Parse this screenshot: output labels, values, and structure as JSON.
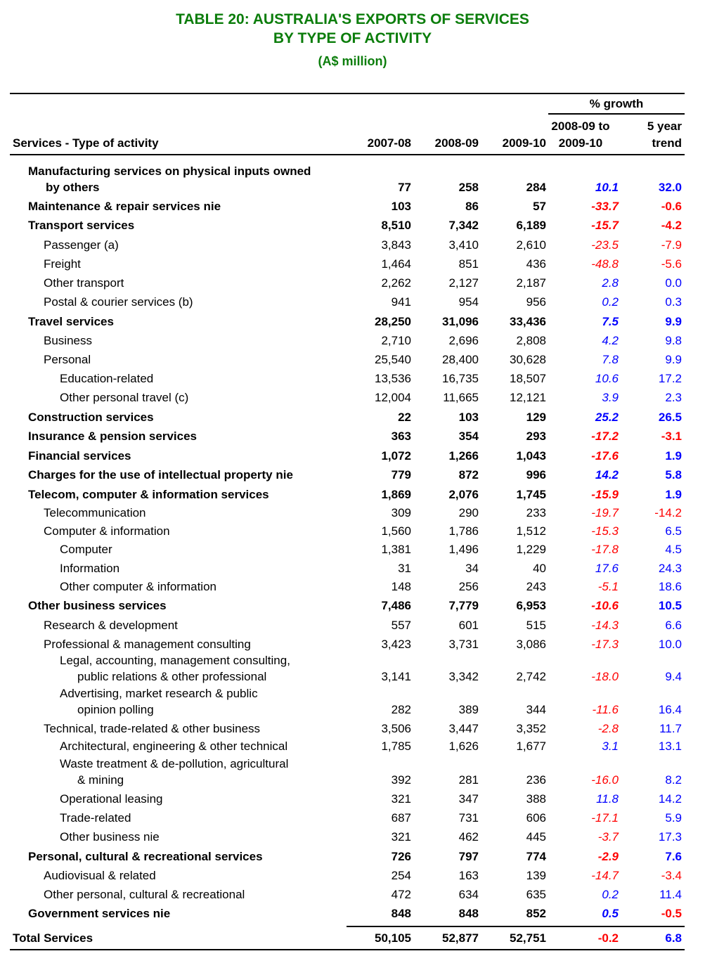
{
  "title": {
    "line1": "TABLE 20:  AUSTRALIA'S EXPORTS OF SERVICES",
    "line2": "BY TYPE OF ACTIVITY",
    "units": "(A$ million)"
  },
  "header": {
    "activity": "Services - Type of activity",
    "years": [
      "2007-08",
      "2008-09",
      "2009-10"
    ],
    "growth_group": "% growth",
    "growth_line1": "2008-09 to",
    "growth_line2": "2009-10",
    "trend_line1": "5 year",
    "trend_line2": "trend"
  },
  "colors": {
    "title": "#0b7d0b",
    "negative": "#ff0000",
    "positive": "#0000ff"
  },
  "rows": [
    {
      "label": "Manufacturing services on physical inputs owned",
      "label2": "by others",
      "level": 1,
      "bold": true,
      "values": [
        "77",
        "258",
        "284"
      ],
      "growth": "10.1",
      "trend": "32.0"
    },
    {
      "label": "Maintenance & repair services nie",
      "level": 1,
      "bold": true,
      "values": [
        "103",
        "86",
        "57"
      ],
      "growth": "-33.7",
      "trend": "-0.6"
    },
    {
      "label": "Transport services",
      "level": 1,
      "bold": true,
      "values": [
        "8,510",
        "7,342",
        "6,189"
      ],
      "growth": "-15.7",
      "trend": "-4.2"
    },
    {
      "label": "Passenger (a)",
      "level": 2,
      "bold": false,
      "values": [
        "3,843",
        "3,410",
        "2,610"
      ],
      "growth": "-23.5",
      "trend": "-7.9"
    },
    {
      "label": "Freight",
      "level": 2,
      "bold": false,
      "values": [
        "1,464",
        "851",
        "436"
      ],
      "growth": "-48.8",
      "trend": "-5.6"
    },
    {
      "label": "Other transport",
      "level": 2,
      "bold": false,
      "values": [
        "2,262",
        "2,127",
        "2,187"
      ],
      "growth": "2.8",
      "trend": "0.0"
    },
    {
      "label": "Postal & courier services (b)",
      "level": 2,
      "bold": false,
      "values": [
        "941",
        "954",
        "956"
      ],
      "growth": "0.2",
      "trend": "0.3"
    },
    {
      "label": "Travel services",
      "level": 1,
      "bold": true,
      "values": [
        "28,250",
        "31,096",
        "33,436"
      ],
      "growth": "7.5",
      "trend": "9.9"
    },
    {
      "label": "Business",
      "level": 2,
      "bold": false,
      "values": [
        "2,710",
        "2,696",
        "2,808"
      ],
      "growth": "4.2",
      "trend": "9.8"
    },
    {
      "label": "Personal",
      "level": 2,
      "bold": false,
      "values": [
        "25,540",
        "28,400",
        "30,628"
      ],
      "growth": "7.8",
      "trend": "9.9"
    },
    {
      "label": "Education-related",
      "level": 3,
      "bold": false,
      "values": [
        "13,536",
        "16,735",
        "18,507"
      ],
      "growth": "10.6",
      "trend": "17.2"
    },
    {
      "label": "Other personal travel (c)",
      "level": 3,
      "bold": false,
      "values": [
        "12,004",
        "11,665",
        "12,121"
      ],
      "growth": "3.9",
      "trend": "2.3"
    },
    {
      "label": "Construction services",
      "level": 1,
      "bold": true,
      "values": [
        "22",
        "103",
        "129"
      ],
      "growth": "25.2",
      "trend": "26.5"
    },
    {
      "label": "Insurance & pension services",
      "level": 1,
      "bold": true,
      "values": [
        "363",
        "354",
        "293"
      ],
      "growth": "-17.2",
      "trend": "-3.1"
    },
    {
      "label": "Financial services",
      "level": 1,
      "bold": true,
      "values": [
        "1,072",
        "1,266",
        "1,043"
      ],
      "growth": "-17.6",
      "trend": "1.9"
    },
    {
      "label": "Charges for the use of intellectual property nie",
      "level": 1,
      "bold": true,
      "values": [
        "779",
        "872",
        "996"
      ],
      "growth": "14.2",
      "trend": "5.8"
    },
    {
      "label": "Telecom, computer & information services",
      "level": 1,
      "bold": true,
      "values": [
        "1,869",
        "2,076",
        "1,745"
      ],
      "growth": "-15.9",
      "trend": "1.9"
    },
    {
      "label": "Telecommunication",
      "level": 2,
      "bold": false,
      "values": [
        "309",
        "290",
        "233"
      ],
      "growth": "-19.7",
      "trend": "-14.2"
    },
    {
      "label": "Computer & information",
      "level": 2,
      "bold": false,
      "values": [
        "1,560",
        "1,786",
        "1,512"
      ],
      "growth": "-15.3",
      "trend": "6.5"
    },
    {
      "label": "Computer",
      "level": 3,
      "bold": false,
      "values": [
        "1,381",
        "1,496",
        "1,229"
      ],
      "growth": "-17.8",
      "trend": "4.5"
    },
    {
      "label": "Information",
      "level": 3,
      "bold": false,
      "values": [
        "31",
        "34",
        "40"
      ],
      "growth": "17.6",
      "trend": "24.3"
    },
    {
      "label": "Other computer & information",
      "level": 3,
      "bold": false,
      "values": [
        "148",
        "256",
        "243"
      ],
      "growth": "-5.1",
      "trend": "18.6"
    },
    {
      "label": "Other business services",
      "level": 1,
      "bold": true,
      "values": [
        "7,486",
        "7,779",
        "6,953"
      ],
      "growth": "-10.6",
      "trend": "10.5"
    },
    {
      "label": "Research & development",
      "level": 2,
      "bold": false,
      "values": [
        "557",
        "601",
        "515"
      ],
      "growth": "-14.3",
      "trend": "6.6"
    },
    {
      "label": "Professional & management consulting",
      "level": 2,
      "bold": false,
      "values": [
        "3,423",
        "3,731",
        "3,086"
      ],
      "growth": "-17.3",
      "trend": "10.0"
    },
    {
      "label": "Legal, accounting, management consulting,",
      "label2": "public relations & other professional",
      "level": 3,
      "bold": false,
      "values": [
        "3,141",
        "3,342",
        "2,742"
      ],
      "growth": "-18.0",
      "trend": "9.4"
    },
    {
      "label": "Advertising, market research & public",
      "label2": "opinion polling",
      "level": 3,
      "bold": false,
      "values": [
        "282",
        "389",
        "344"
      ],
      "growth": "-11.6",
      "trend": "16.4"
    },
    {
      "label": "Technical, trade-related & other business",
      "level": 2,
      "bold": false,
      "values": [
        "3,506",
        "3,447",
        "3,352"
      ],
      "growth": "-2.8",
      "trend": "11.7"
    },
    {
      "label": "Architectural, engineering & other technical",
      "level": 3,
      "bold": false,
      "values": [
        "1,785",
        "1,626",
        "1,677"
      ],
      "growth": "3.1",
      "trend": "13.1"
    },
    {
      "label": "Waste treatment & de-pollution, agricultural",
      "label2": "& mining",
      "level": 3,
      "bold": false,
      "values": [
        "392",
        "281",
        "236"
      ],
      "growth": "-16.0",
      "trend": "8.2"
    },
    {
      "label": "Operational leasing",
      "level": 3,
      "bold": false,
      "values": [
        "321",
        "347",
        "388"
      ],
      "growth": "11.8",
      "trend": "14.2"
    },
    {
      "label": "Trade-related",
      "level": 3,
      "bold": false,
      "values": [
        "687",
        "731",
        "606"
      ],
      "growth": "-17.1",
      "trend": "5.9"
    },
    {
      "label": "Other business nie",
      "level": 3,
      "bold": false,
      "values": [
        "321",
        "462",
        "445"
      ],
      "growth": "-3.7",
      "trend": "17.3"
    },
    {
      "label": "Personal, cultural & recreational services",
      "level": 1,
      "bold": true,
      "values": [
        "726",
        "797",
        "774"
      ],
      "growth": "-2.9",
      "trend": "7.6"
    },
    {
      "label": "Audiovisual & related",
      "level": 2,
      "bold": false,
      "values": [
        "254",
        "163",
        "139"
      ],
      "growth": "-14.7",
      "trend": "-3.4"
    },
    {
      "label": "Other personal, cultural & recreational",
      "level": 2,
      "bold": false,
      "values": [
        "472",
        "634",
        "635"
      ],
      "growth": "0.2",
      "trend": "11.4"
    },
    {
      "label": "Government services nie",
      "level": 1,
      "bold": true,
      "values": [
        "848",
        "848",
        "852"
      ],
      "growth": "0.5",
      "trend": "-0.5"
    }
  ],
  "total": {
    "label": "Total Services",
    "values": [
      "50,105",
      "52,877",
      "52,751"
    ],
    "growth": "-0.2",
    "trend": "6.8"
  }
}
